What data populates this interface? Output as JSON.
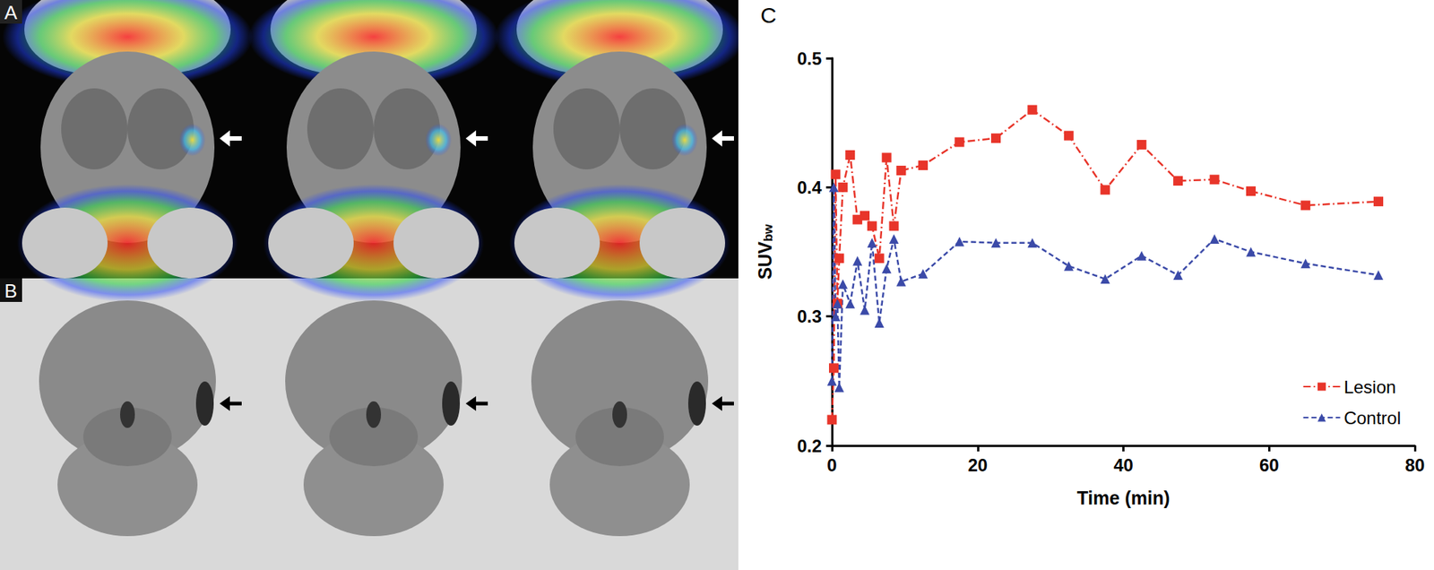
{
  "panel_labels": [
    "A",
    "B",
    "C"
  ],
  "chart_data": {
    "type": "line",
    "xlabel": "Time (min)",
    "ylabel": {
      "text": "SUV",
      "subscript": "bw"
    },
    "x": [
      0,
      0.25,
      0.5,
      0.75,
      1.0,
      1.5,
      2.5,
      3.5,
      4.5,
      5.5,
      6.5,
      7.5,
      8.5,
      9.5,
      12.5,
      17.5,
      22.5,
      27.5,
      32.5,
      37.5,
      42.5,
      47.5,
      52.5,
      57.5,
      65,
      75
    ],
    "series": [
      {
        "name": "Lesion",
        "color": "#e8352a",
        "marker": "square",
        "line_style": "dashdot",
        "values": [
          0.22,
          0.26,
          0.41,
          0.31,
          0.345,
          0.4,
          0.425,
          0.375,
          0.378,
          0.37,
          0.345,
          0.423,
          0.37,
          0.413,
          0.417,
          0.435,
          0.438,
          0.46,
          0.44,
          0.398,
          0.433,
          0.405,
          0.406,
          0.397,
          0.386,
          0.389
        ]
      },
      {
        "name": "Control",
        "color": "#3b4aa8",
        "marker": "triangle",
        "line_style": "dashed",
        "values": [
          0.25,
          0.4,
          0.3,
          0.31,
          0.245,
          0.325,
          0.31,
          0.343,
          0.305,
          0.357,
          0.295,
          0.337,
          0.36,
          0.327,
          0.333,
          0.358,
          0.357,
          0.357,
          0.339,
          0.329,
          0.347,
          0.332,
          0.36,
          0.35,
          0.341,
          0.332
        ]
      }
    ],
    "xlim": [
      0,
      80
    ],
    "xticks": [
      0,
      20,
      40,
      60,
      80
    ],
    "ylim": [
      0.2,
      0.5
    ],
    "yticks": [
      0.2,
      0.3,
      0.4,
      0.5
    ],
    "grid": false,
    "legend": "lower right"
  }
}
